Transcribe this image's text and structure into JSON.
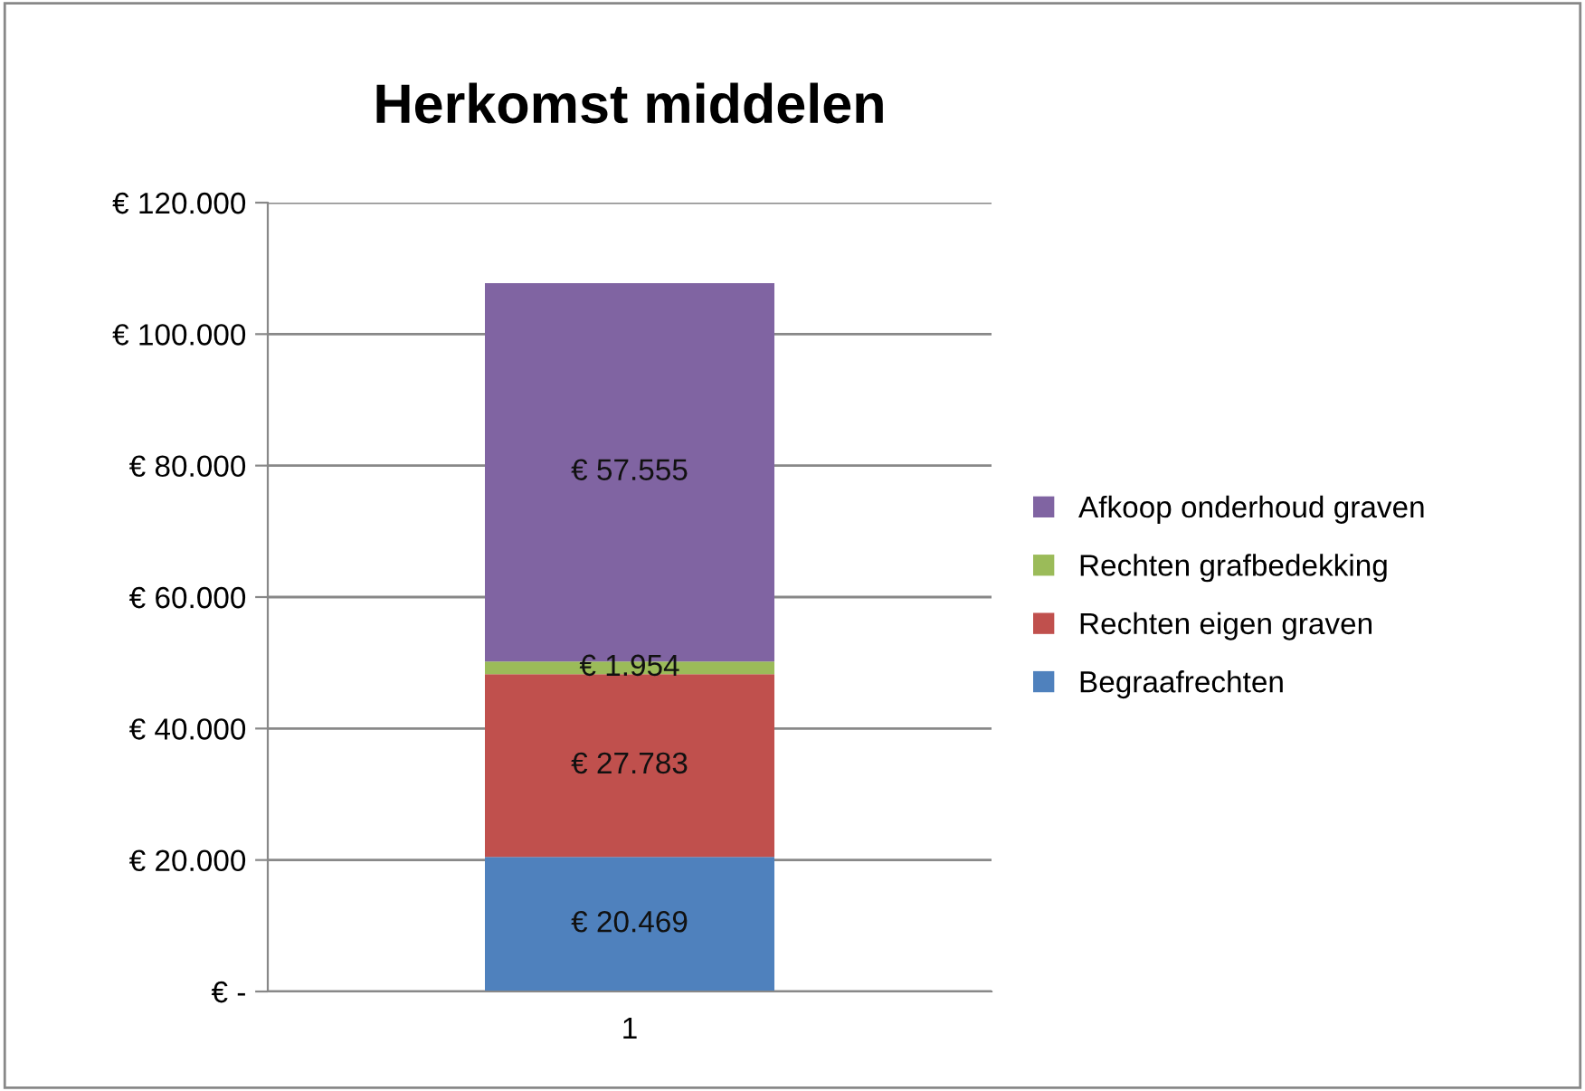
{
  "chart_data": {
    "type": "bar",
    "title": "Herkomst middelen",
    "categories": [
      "1"
    ],
    "stacked": true,
    "series": [
      {
        "name": "Begraafrechten",
        "color": "#4f81bd",
        "values": [
          20469
        ],
        "value_labels": [
          "€ 20.469"
        ]
      },
      {
        "name": "Rechten eigen graven",
        "color": "#c0504d",
        "values": [
          27783
        ],
        "value_labels": [
          "€ 27.783"
        ]
      },
      {
        "name": "Rechten grafbedekking",
        "color": "#9bbb59",
        "values": [
          1954
        ],
        "value_labels": [
          "€ 1.954"
        ]
      },
      {
        "name": "Afkoop onderhoud graven",
        "color": "#8064a2",
        "values": [
          57555
        ],
        "value_labels": [
          "€ 57.555"
        ]
      }
    ],
    "ylim": [
      0,
      120000
    ],
    "yticks": [
      {
        "value": 0,
        "label": "€ -"
      },
      {
        "value": 20000,
        "label": "€ 20.000"
      },
      {
        "value": 40000,
        "label": "€ 40.000"
      },
      {
        "value": 60000,
        "label": "€ 60.000"
      },
      {
        "value": 80000,
        "label": "€ 80.000"
      },
      {
        "value": 100000,
        "label": "€ 100.000"
      },
      {
        "value": 120000,
        "label": "€ 120.000"
      }
    ],
    "grid": "y",
    "legend": "right"
  }
}
